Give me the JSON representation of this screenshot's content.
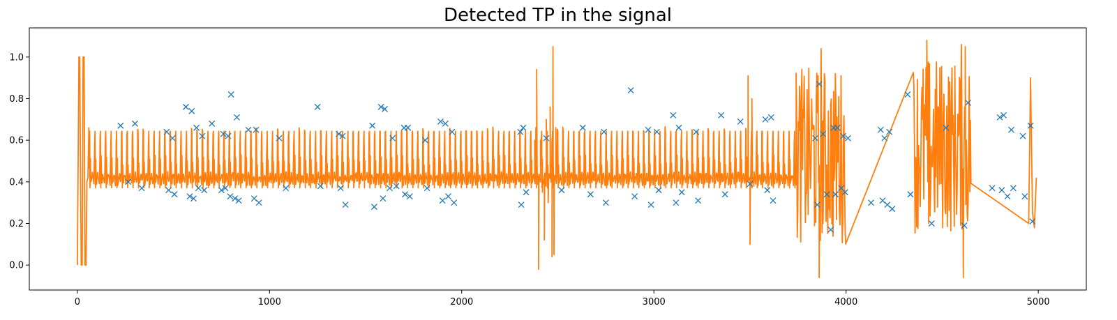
{
  "chart_data": {
    "type": "line",
    "title": "Detected TP in the signal",
    "xlabel": "",
    "ylabel": "",
    "xlim": [
      -250,
      5250
    ],
    "ylim": [
      -0.12,
      1.14
    ],
    "xticks": [
      0,
      1000,
      2000,
      3000,
      4000,
      5000
    ],
    "xtick_labels": [
      "0",
      "1000",
      "2000",
      "3000",
      "4000",
      "5000"
    ],
    "yticks": [
      0.0,
      0.2,
      0.4,
      0.6,
      0.8,
      1.0
    ],
    "ytick_labels": [
      "0.0",
      "0.2",
      "0.4",
      "0.6",
      "0.8",
      "1.0"
    ],
    "grid": false,
    "colors": {
      "line": "#ff7f0e",
      "markers": "#1f77b4"
    },
    "series": [
      {
        "kind": "line",
        "segments": [
          {
            "x": [
              0,
              8,
              12,
              20,
              25,
              30,
              35,
              40,
              45,
              50,
              55,
              60
            ],
            "y": [
              0.0,
              1.0,
              1.0,
              0.0,
              0.0,
              1.0,
              1.0,
              0.0,
              0.0,
              0.4,
              0.42,
              0.66
            ]
          },
          {
            "x_start": 60,
            "x_end": 3740,
            "period": 28,
            "base": 0.4,
            "peak": 0.68,
            "shape": "spiky-periodic"
          },
          {
            "x": [
              2380,
              2390,
              2400,
              2410,
              2420,
              2430,
              2440,
              2450,
              2460,
              2470,
              2475,
              2480,
              2490
            ],
            "y": [
              0.6,
              0.94,
              -0.02,
              0.6,
              0.35,
              0.12,
              0.7,
              0.3,
              0.76,
              0.04,
              1.05,
              0.05,
              0.66
            ]
          },
          {
            "x": [
              3480,
              3490,
              3500,
              3510,
              3520
            ],
            "y": [
              0.4,
              0.91,
              0.1,
              0.8,
              0.38
            ]
          },
          {
            "x_start": 3740,
            "x_end": 4000,
            "period": 12,
            "base": 0.1,
            "peak": 0.95,
            "shape": "noisy-burst"
          },
          {
            "x": [
              3860,
              3870,
              3880,
              3890
            ],
            "y": [
              -0.06,
              1.04,
              0.2,
              0.75
            ]
          },
          {
            "x_start": 4350,
            "x_end": 4650,
            "period": 12,
            "base": 0.15,
            "peak": 1.0,
            "shape": "noisy-burst"
          },
          {
            "x": [
              4420,
              4430,
              4600,
              4610,
              4620,
              4630
            ],
            "y": [
              1.08,
              0.2,
              1.06,
              -0.06,
              1.05,
              0.25
            ]
          },
          {
            "x": [
              4950,
              4960,
              4970,
              4980,
              4990
            ],
            "y": [
              0.2,
              0.9,
              0.25,
              0.18,
              0.42
            ]
          }
        ]
      },
      {
        "kind": "markers",
        "marker": "x",
        "points": [
          [
            225,
            0.67
          ],
          [
            265,
            0.4
          ],
          [
            300,
            0.68
          ],
          [
            335,
            0.37
          ],
          [
            465,
            0.64
          ],
          [
            475,
            0.36
          ],
          [
            495,
            0.61
          ],
          [
            505,
            0.34
          ],
          [
            565,
            0.76
          ],
          [
            585,
            0.33
          ],
          [
            595,
            0.74
          ],
          [
            605,
            0.32
          ],
          [
            620,
            0.66
          ],
          [
            630,
            0.37
          ],
          [
            650,
            0.62
          ],
          [
            660,
            0.36
          ],
          [
            700,
            0.68
          ],
          [
            750,
            0.36
          ],
          [
            760,
            0.63
          ],
          [
            770,
            0.37
          ],
          [
            785,
            0.62
          ],
          [
            795,
            0.33
          ],
          [
            800,
            0.82
          ],
          [
            820,
            0.32
          ],
          [
            830,
            0.71
          ],
          [
            840,
            0.31
          ],
          [
            890,
            0.65
          ],
          [
            920,
            0.32
          ],
          [
            930,
            0.65
          ],
          [
            945,
            0.3
          ],
          [
            1050,
            0.61
          ],
          [
            1085,
            0.37
          ],
          [
            1250,
            0.76
          ],
          [
            1265,
            0.38
          ],
          [
            1360,
            0.63
          ],
          [
            1370,
            0.37
          ],
          [
            1380,
            0.62
          ],
          [
            1395,
            0.29
          ],
          [
            1535,
            0.67
          ],
          [
            1545,
            0.28
          ],
          [
            1580,
            0.76
          ],
          [
            1590,
            0.32
          ],
          [
            1600,
            0.75
          ],
          [
            1625,
            0.37
          ],
          [
            1640,
            0.61
          ],
          [
            1660,
            0.38
          ],
          [
            1700,
            0.66
          ],
          [
            1705,
            0.34
          ],
          [
            1720,
            0.66
          ],
          [
            1730,
            0.33
          ],
          [
            1810,
            0.6
          ],
          [
            1820,
            0.37
          ],
          [
            1890,
            0.69
          ],
          [
            1900,
            0.31
          ],
          [
            1915,
            0.68
          ],
          [
            1930,
            0.33
          ],
          [
            1950,
            0.64
          ],
          [
            1960,
            0.3
          ],
          [
            2305,
            0.64
          ],
          [
            2310,
            0.29
          ],
          [
            2320,
            0.66
          ],
          [
            2335,
            0.35
          ],
          [
            2440,
            0.61
          ],
          [
            2520,
            0.36
          ],
          [
            2630,
            0.66
          ],
          [
            2670,
            0.34
          ],
          [
            2740,
            0.64
          ],
          [
            2750,
            0.3
          ],
          [
            2880,
            0.84
          ],
          [
            2900,
            0.33
          ],
          [
            2970,
            0.65
          ],
          [
            2985,
            0.29
          ],
          [
            3015,
            0.64
          ],
          [
            3025,
            0.36
          ],
          [
            3100,
            0.72
          ],
          [
            3115,
            0.3
          ],
          [
            3130,
            0.66
          ],
          [
            3145,
            0.35
          ],
          [
            3220,
            0.64
          ],
          [
            3230,
            0.31
          ],
          [
            3350,
            0.72
          ],
          [
            3370,
            0.34
          ],
          [
            3450,
            0.69
          ],
          [
            3500,
            0.39
          ],
          [
            3580,
            0.7
          ],
          [
            3590,
            0.36
          ],
          [
            3610,
            0.71
          ],
          [
            3620,
            0.31
          ],
          [
            3840,
            0.61
          ],
          [
            3850,
            0.29
          ],
          [
            3860,
            0.87
          ],
          [
            3880,
            0.63
          ],
          [
            3900,
            0.34
          ],
          [
            3920,
            0.17
          ],
          [
            3935,
            0.66
          ],
          [
            3945,
            0.34
          ],
          [
            3955,
            0.66
          ],
          [
            3975,
            0.37
          ],
          [
            3985,
            0.62
          ],
          [
            3995,
            0.35
          ],
          [
            4010,
            0.61
          ],
          [
            4130,
            0.3
          ],
          [
            4180,
            0.65
          ],
          [
            4190,
            0.31
          ],
          [
            4200,
            0.61
          ],
          [
            4215,
            0.29
          ],
          [
            4225,
            0.64
          ],
          [
            4240,
            0.27
          ],
          [
            4320,
            0.82
          ],
          [
            4335,
            0.34
          ],
          [
            4445,
            0.2
          ],
          [
            4520,
            0.66
          ],
          [
            4615,
            0.19
          ],
          [
            4635,
            0.78
          ],
          [
            4760,
            0.37
          ],
          [
            4800,
            0.71
          ],
          [
            4810,
            0.36
          ],
          [
            4820,
            0.72
          ],
          [
            4840,
            0.33
          ],
          [
            4860,
            0.65
          ],
          [
            4870,
            0.37
          ],
          [
            4920,
            0.62
          ],
          [
            4930,
            0.33
          ],
          [
            4960,
            0.67
          ],
          [
            4970,
            0.21
          ]
        ]
      }
    ]
  }
}
